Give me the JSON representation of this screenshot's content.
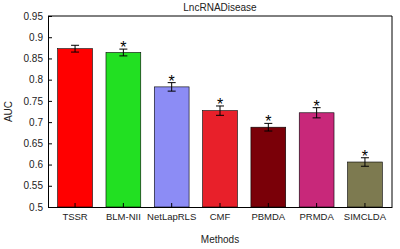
{
  "chart_data": {
    "type": "bar",
    "title": "LncRNADisease",
    "x_label": "Methods",
    "y_label": "AUC",
    "categories": [
      "TSSR",
      "BLM-NII",
      "NetLapRLS",
      "CMF",
      "PBMDA",
      "PRMDA",
      "SIMCLDA"
    ],
    "values": [
      0.873,
      0.864,
      0.783,
      0.727,
      0.688,
      0.722,
      0.606
    ],
    "errors": [
      0.008,
      0.008,
      0.01,
      0.011,
      0.009,
      0.012,
      0.01
    ],
    "colors": [
      "#ff0000",
      "#22e022",
      "#8c8cf5",
      "#e8202a",
      "#7a0008",
      "#c8287a",
      "#7d7a50"
    ],
    "ylim": [
      0.5,
      0.95
    ],
    "yticks": [
      0.5,
      0.55,
      0.6,
      0.65,
      0.7,
      0.75,
      0.8,
      0.85,
      0.9,
      0.95
    ],
    "grid": false,
    "annotations": [
      {
        "text": "*",
        "category": "BLM-NII"
      },
      {
        "text": "*",
        "category": "NetLapRLS"
      },
      {
        "text": "*",
        "category": "CMF"
      },
      {
        "text": "*",
        "category": "PBMDA"
      },
      {
        "text": "*",
        "category": "PRMDA"
      },
      {
        "text": "*",
        "category": "SIMCLDA"
      }
    ]
  }
}
